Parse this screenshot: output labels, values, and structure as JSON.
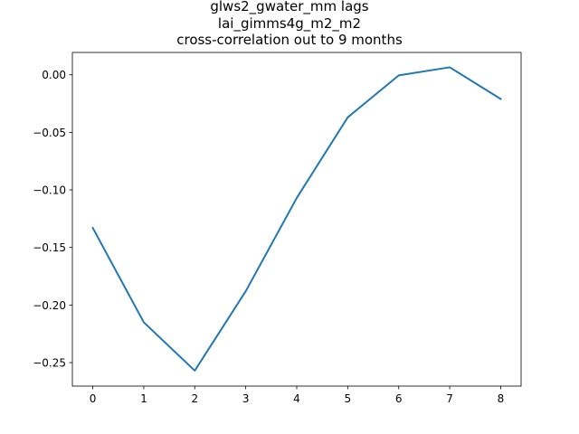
{
  "chart_data": {
    "type": "line",
    "title_lines": [
      "glws2_gwater_mm lags",
      "lai_gimms4g_m2_m2",
      "cross-correlation out to 9 months"
    ],
    "xlabel": "",
    "ylabel": "",
    "x": [
      0,
      1,
      2,
      3,
      4,
      5,
      6,
      7,
      8
    ],
    "series": [
      {
        "values": [
          -0.133,
          -0.215,
          -0.257,
          -0.188,
          -0.107,
          -0.037,
          -0.0005,
          0.0065,
          -0.021
        ],
        "color": "#1f77b4"
      }
    ],
    "xticks": [
      0,
      1,
      2,
      3,
      4,
      5,
      6,
      7,
      8
    ],
    "yticks": [
      -0.25,
      -0.2,
      -0.15,
      -0.1,
      -0.05,
      0.0
    ],
    "ytick_labels": [
      "−0.25",
      "−0.20",
      "−0.15",
      "−0.10",
      "−0.05",
      "0.00"
    ],
    "xlim": [
      -0.4,
      8.4
    ],
    "ylim": [
      -0.2704,
      0.0194
    ],
    "grid": false,
    "legend": "none"
  }
}
